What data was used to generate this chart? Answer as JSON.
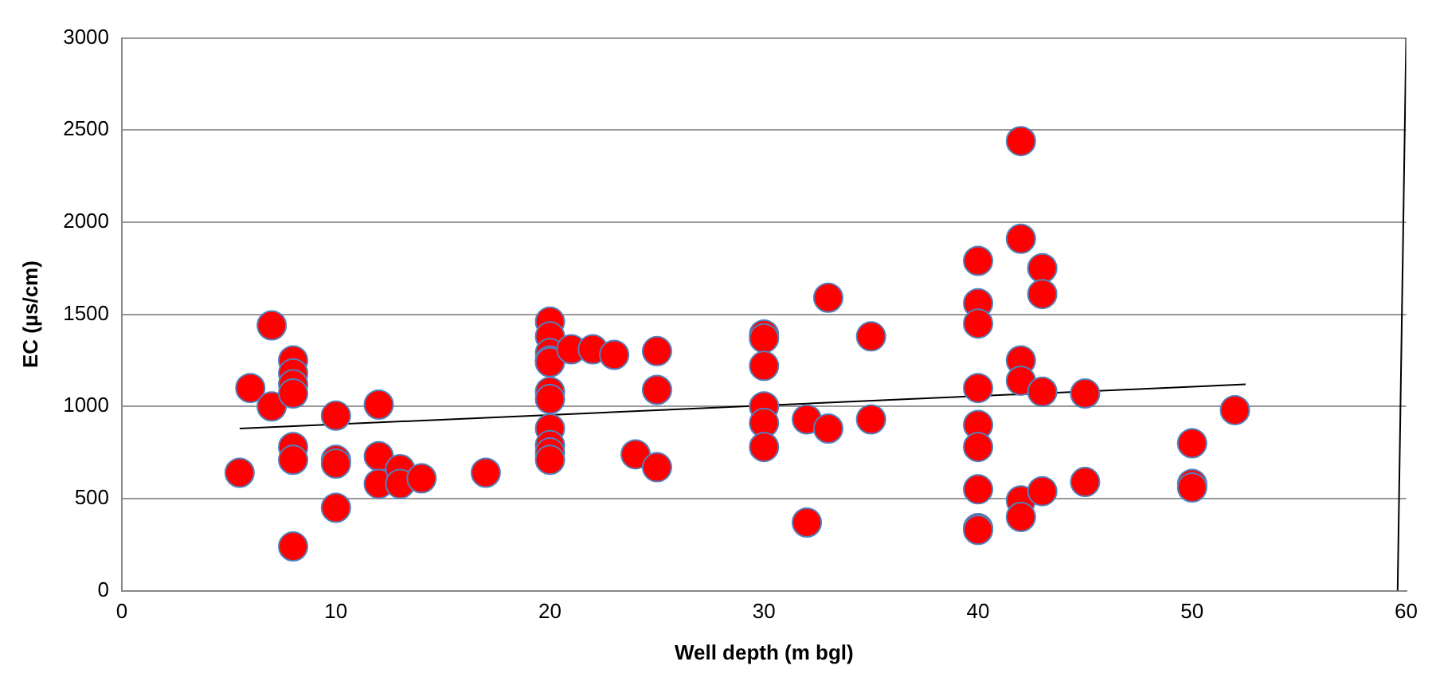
{
  "chart_data": {
    "type": "scatter",
    "xlabel": "Well depth (m bgl)",
    "ylabel": "EC (µs/cm)",
    "xlim": [
      0,
      60
    ],
    "xticks": [
      0,
      10,
      20,
      30,
      40,
      50,
      60
    ],
    "ylim": [
      0,
      3000
    ],
    "yticks": [
      0,
      500,
      1000,
      1500,
      2000,
      2500,
      3000
    ],
    "grid": "y",
    "legend": false,
    "series": [
      {
        "type": "scatter",
        "marker": "circle",
        "color": "#ff0000",
        "x": [
          5.5,
          6,
          7,
          7,
          8,
          8,
          8,
          8,
          8,
          8,
          8,
          10,
          10,
          10,
          10,
          12,
          12,
          12,
          13,
          13,
          14,
          17,
          20,
          20,
          20,
          20,
          20,
          20,
          20,
          20,
          20,
          20,
          20,
          21,
          22,
          23,
          24,
          25,
          25,
          25,
          30,
          30,
          30,
          30,
          30,
          30,
          32,
          32,
          33,
          33,
          35,
          35,
          40,
          40,
          40,
          40,
          40,
          40,
          40,
          40,
          40,
          42,
          42,
          42,
          42,
          42,
          42,
          43,
          43,
          43,
          43,
          45,
          45,
          50,
          50,
          50,
          52
        ],
        "values": [
          640,
          1100,
          1440,
          1000,
          1250,
          1180,
          1120,
          1070,
          780,
          710,
          240,
          950,
          710,
          690,
          450,
          1010,
          730,
          580,
          660,
          580,
          610,
          640,
          1460,
          1380,
          1290,
          1250,
          1240,
          1080,
          1040,
          880,
          790,
          750,
          710,
          1310,
          1310,
          1280,
          740,
          1300,
          1090,
          670,
          1390,
          1370,
          1220,
          1000,
          910,
          780,
          930,
          370,
          880,
          1590,
          1380,
          930,
          1790,
          1560,
          1450,
          1100,
          900,
          780,
          550,
          340,
          330,
          2440,
          1910,
          1250,
          1140,
          490,
          400,
          1750,
          1610,
          1080,
          540,
          1070,
          590,
          800,
          580,
          560,
          980
        ]
      },
      {
        "type": "line",
        "color": "#000000",
        "x": [
          5.5,
          52.5
        ],
        "values": [
          880,
          1120
        ]
      },
      {
        "type": "line",
        "color": "#000000",
        "x": [
          59.6,
          60
        ],
        "values": [
          0,
          3000
        ]
      }
    ]
  }
}
